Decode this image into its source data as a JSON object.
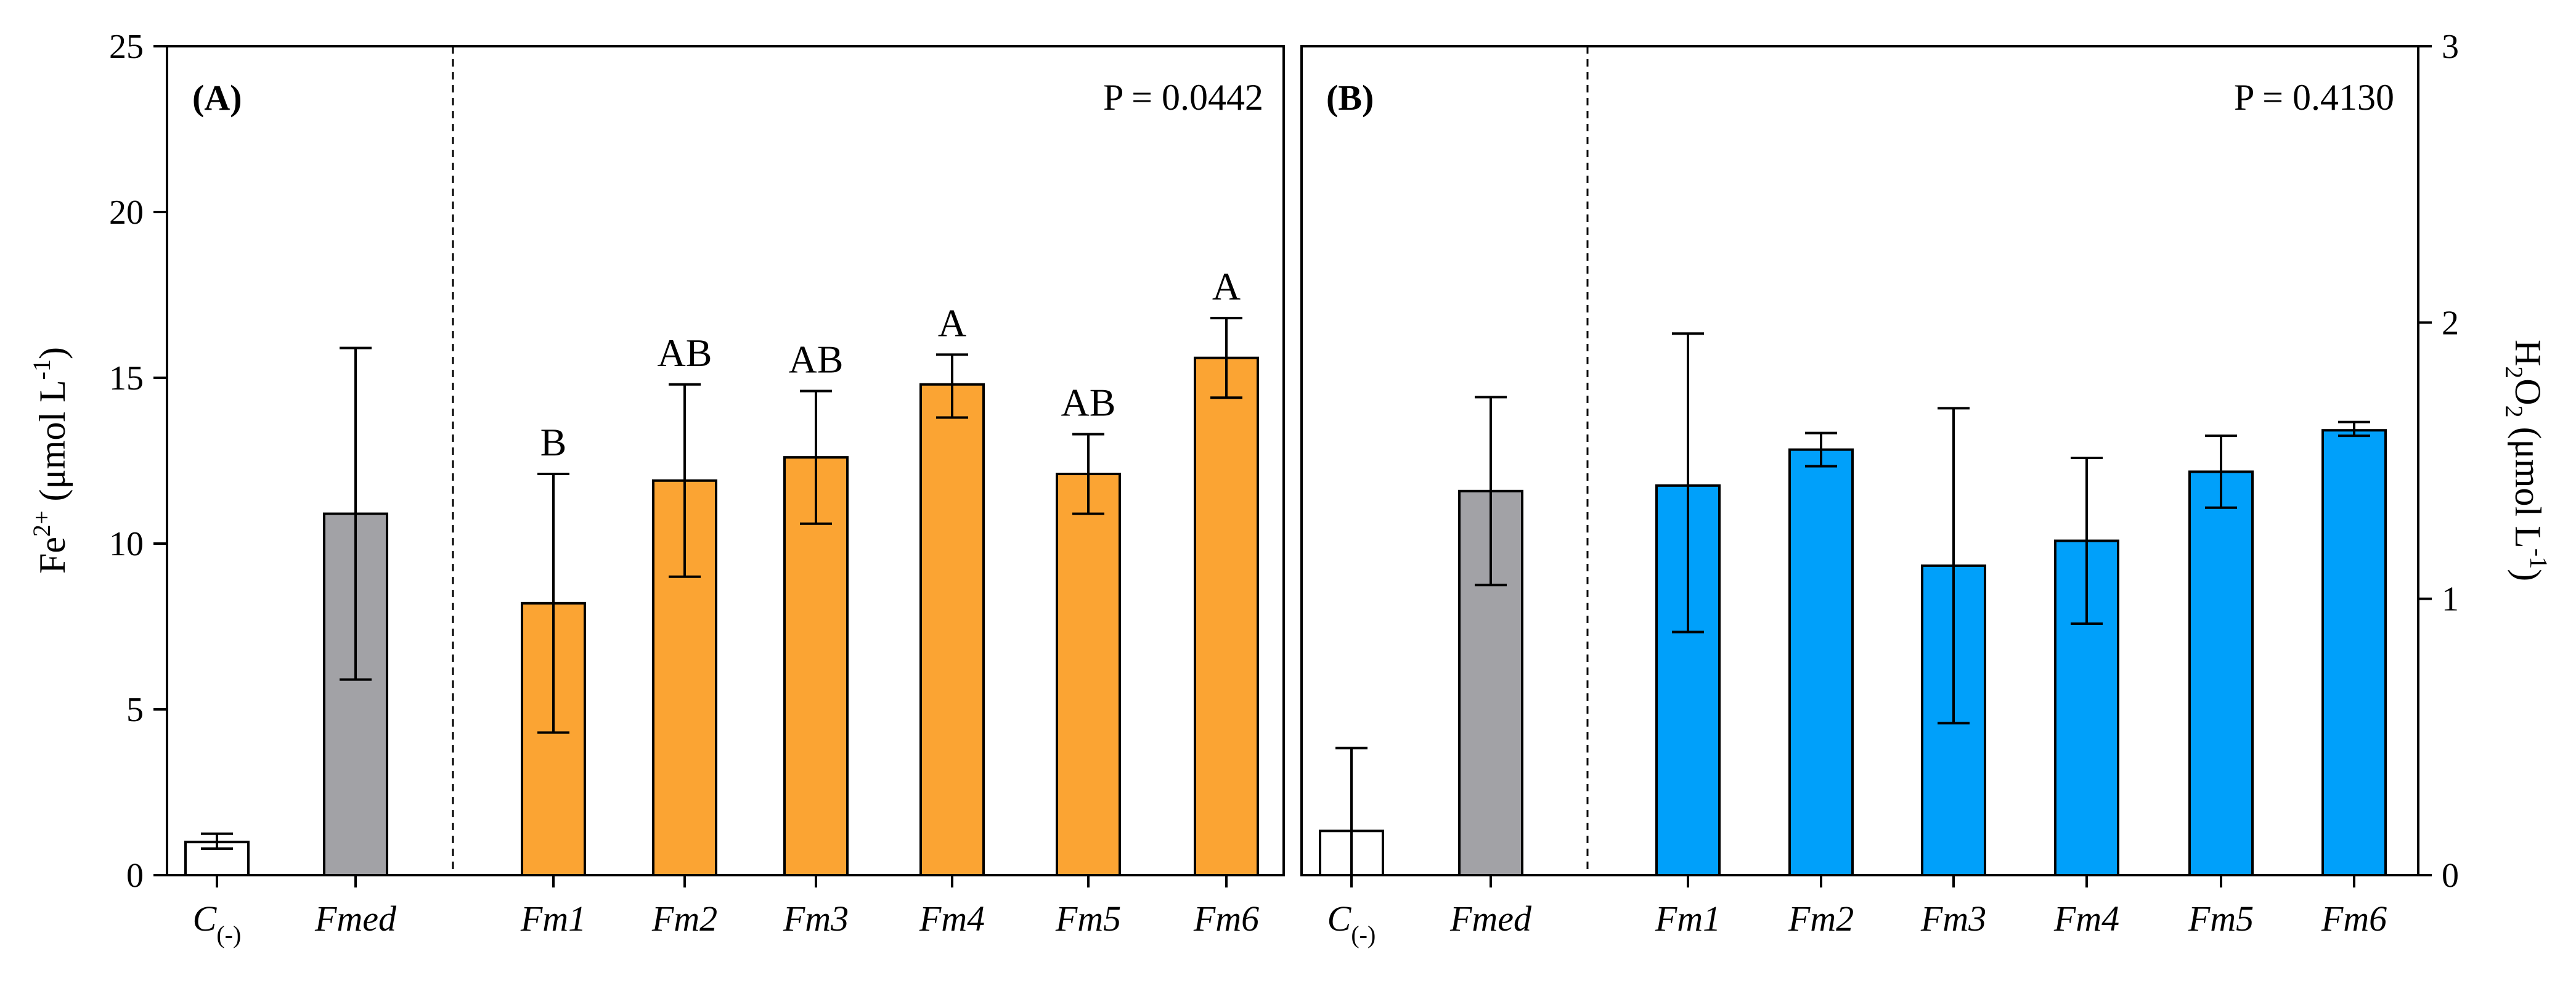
{
  "chart_data": [
    {
      "type": "bar",
      "panel_label": "(A)",
      "p_value": "P = 0.0442",
      "ylabel_main": "Fe",
      "ylabel_sup": "2+",
      "ylabel_tail": " (μmol L",
      "ylabel_tail_sup": "-1",
      "ylabel_end": ")",
      "ylim": [
        0,
        25
      ],
      "yticks": [
        "0",
        "5",
        "10",
        "15",
        "20",
        "25"
      ],
      "categories": [
        "C(-)",
        "Fmed",
        "Fm1",
        "Fm2",
        "Fm3",
        "Fm4",
        "Fm5",
        "Fm6"
      ],
      "category_labels": [
        {
          "main": "C",
          "sub": "(-)"
        },
        {
          "main": "Fmed",
          "sub": ""
        },
        {
          "main": "Fm1",
          "sub": ""
        },
        {
          "main": "Fm2",
          "sub": ""
        },
        {
          "main": "Fm3",
          "sub": ""
        },
        {
          "main": "Fm4",
          "sub": ""
        },
        {
          "main": "Fm5",
          "sub": ""
        },
        {
          "main": "Fm6",
          "sub": ""
        }
      ],
      "values": [
        1.0,
        10.9,
        8.2,
        11.9,
        12.6,
        14.8,
        12.1,
        15.6
      ],
      "err_low": [
        0.8,
        5.9,
        4.3,
        9.0,
        10.6,
        13.8,
        10.9,
        14.4
      ],
      "err_high": [
        1.25,
        15.9,
        12.1,
        14.8,
        14.6,
        15.7,
        13.3,
        16.8
      ],
      "significance": [
        "",
        "",
        "B",
        "AB",
        "AB",
        "A",
        "AB",
        "A"
      ],
      "colors": [
        "#ffffff",
        "#a2a2a6",
        "#fba433",
        "#fba433",
        "#fba433",
        "#fba433",
        "#fba433",
        "#fba433"
      ],
      "grid": false
    },
    {
      "type": "bar",
      "panel_label": "(B)",
      "p_value": "P = 0.4130",
      "ylabel_main": "H",
      "ylabel_sub1": "2",
      "ylabel_mid": "O",
      "ylabel_sub2": "2",
      "ylabel_tail": " (μmol L",
      "ylabel_tail_sup": "-1",
      "ylabel_end": ")",
      "ylim": [
        0,
        3
      ],
      "yticks": [
        "0",
        "1",
        "2",
        "3"
      ],
      "categories": [
        "C(-)",
        "Fmed",
        "Fm1",
        "Fm2",
        "Fm3",
        "Fm4",
        "Fm5",
        "Fm6"
      ],
      "category_labels": [
        {
          "main": "C",
          "sub": "(-)"
        },
        {
          "main": "Fmed",
          "sub": ""
        },
        {
          "main": "Fm1",
          "sub": ""
        },
        {
          "main": "Fm2",
          "sub": ""
        },
        {
          "main": "Fm3",
          "sub": ""
        },
        {
          "main": "Fm4",
          "sub": ""
        },
        {
          "main": "Fm5",
          "sub": ""
        },
        {
          "main": "Fm6",
          "sub": ""
        }
      ],
      "values": [
        0.16,
        1.39,
        1.41,
        1.54,
        1.12,
        1.21,
        1.46,
        1.61
      ],
      "err_low": [
        0.0,
        1.05,
        0.88,
        1.48,
        0.55,
        0.91,
        1.33,
        1.59
      ],
      "err_high": [
        0.46,
        1.73,
        1.96,
        1.6,
        1.69,
        1.51,
        1.59,
        1.64
      ],
      "colors": [
        "#ffffff",
        "#a2a2a6",
        "#00a0fa",
        "#00a0fa",
        "#00a0fa",
        "#00a0fa",
        "#00a0fa",
        "#00a0fa"
      ],
      "grid": false
    }
  ]
}
